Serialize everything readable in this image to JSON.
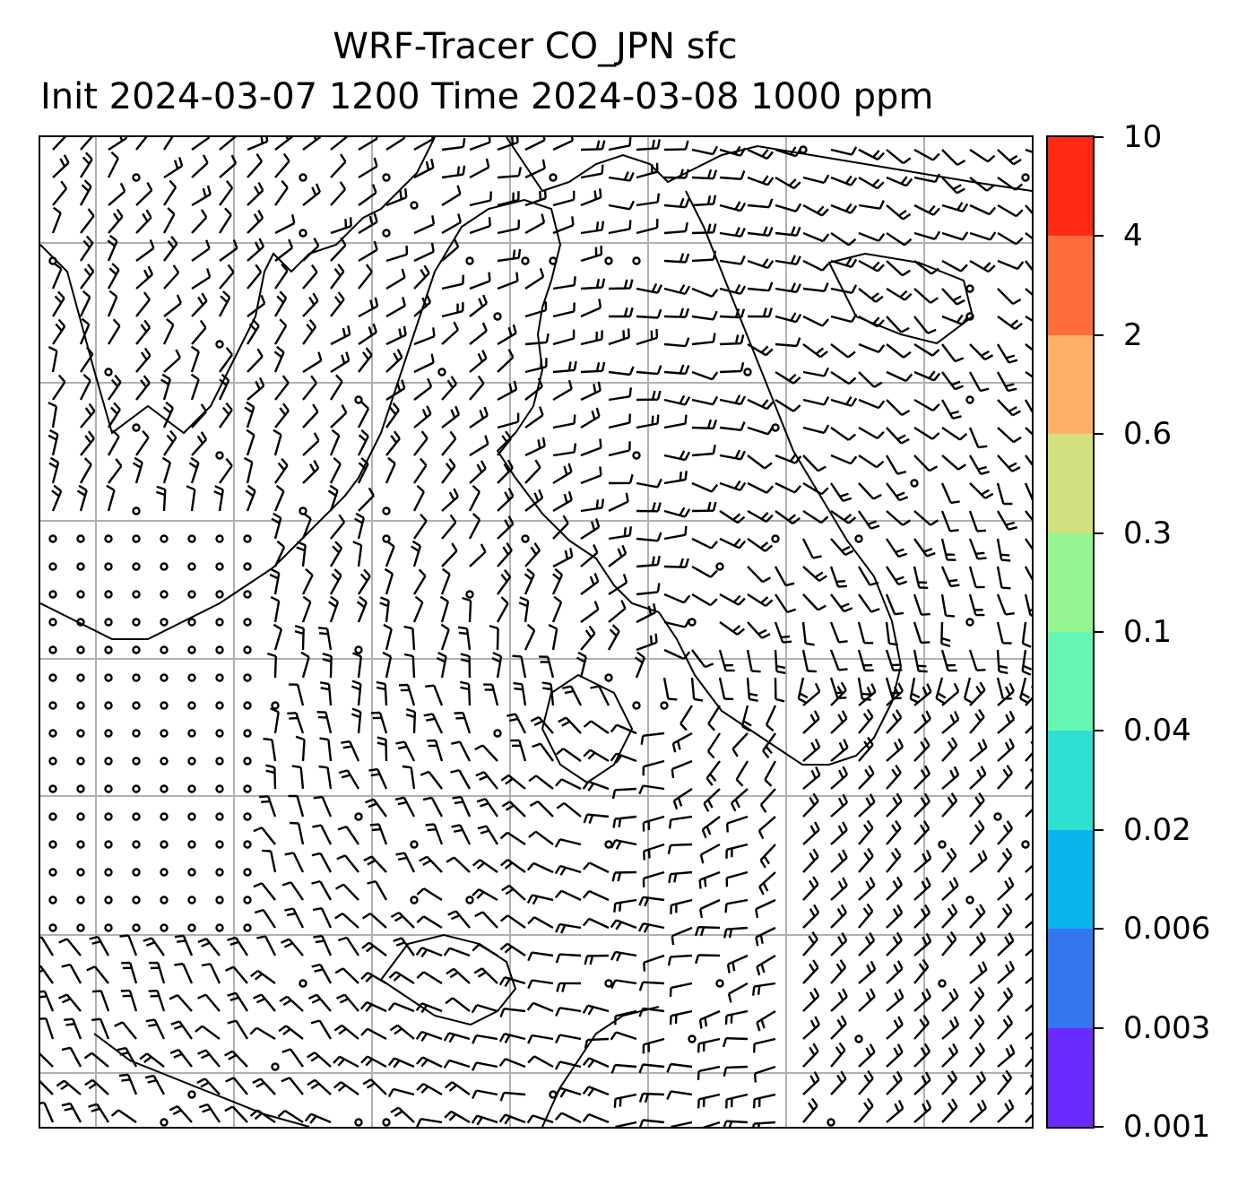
{
  "title": {
    "line1": "WRF-Tracer CO_JPN sfc",
    "line2": "Init 2024-03-07 1200 Time 2024-03-08 1000 ppm"
  },
  "colorbar": {
    "levels": [
      {
        "label": "0.001",
        "color": "#6a2bff"
      },
      {
        "label": "0.003",
        "color": "#3575f0"
      },
      {
        "label": "0.006",
        "color": "#08b4ee"
      },
      {
        "label": "0.02",
        "color": "#2ee0d2"
      },
      {
        "label": "0.04",
        "color": "#66f6b4"
      },
      {
        "label": "0.1",
        "color": "#95f590"
      },
      {
        "label": "0.3",
        "color": "#d2e07f"
      },
      {
        "label": "0.6",
        "color": "#fdb065"
      },
      {
        "label": "2",
        "color": "#ff6e3a"
      },
      {
        "label": "4",
        "color": "#ff2b14"
      },
      {
        "label": "10",
        "color": null
      }
    ]
  },
  "map": {
    "gridline_color": "#b0b0b0",
    "gridlines": true,
    "wind_barbs": true,
    "coastlines": true
  }
}
